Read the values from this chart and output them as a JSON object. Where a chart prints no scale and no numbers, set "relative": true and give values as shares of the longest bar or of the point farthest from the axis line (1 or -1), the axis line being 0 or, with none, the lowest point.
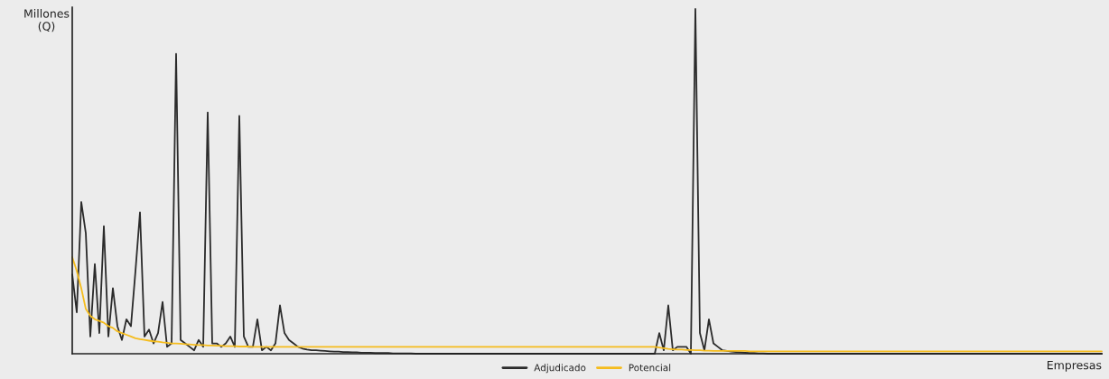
{
  "chart_data": {
    "type": "line",
    "relative": true,
    "xlabel": "Empresas",
    "ylabel": "Millones\n(Q)",
    "legend": "bottom",
    "categories": [
      null,
      null,
      null,
      null,
      null,
      null,
      null,
      null,
      null,
      null,
      null,
      null,
      null,
      null,
      null,
      null,
      null,
      null,
      null,
      null,
      null,
      null,
      null,
      null,
      null,
      null,
      null,
      null,
      null,
      null,
      null,
      null,
      null,
      null,
      null,
      null,
      null,
      null,
      null,
      null,
      null,
      null,
      null,
      null,
      null,
      null,
      null,
      null,
      null,
      null,
      null,
      null,
      null,
      null,
      null,
      null,
      null,
      null,
      null,
      null,
      null,
      null,
      null,
      null,
      null,
      null,
      null,
      null,
      null,
      null,
      null,
      null,
      null,
      null,
      null,
      null,
      null,
      null,
      null,
      null,
      null,
      null,
      null,
      null,
      null,
      null,
      null,
      null,
      null,
      null,
      null,
      null,
      null,
      null,
      null,
      null,
      null,
      null,
      null,
      null,
      null,
      null,
      null,
      null,
      null,
      null,
      null,
      null,
      null,
      null,
      null,
      null,
      null,
      null,
      null,
      null,
      null,
      null,
      null,
      null,
      null,
      null,
      null,
      null,
      null,
      null,
      null,
      null,
      null,
      null,
      null,
      null,
      null,
      null,
      null,
      null,
      null,
      null,
      null,
      null,
      null,
      null,
      null,
      null,
      null,
      null,
      null,
      null,
      null,
      null,
      null,
      null,
      null,
      null,
      null,
      null,
      null,
      null,
      null,
      null,
      null,
      null,
      null,
      null,
      null,
      null,
      null,
      null,
      null,
      null,
      null,
      null,
      null,
      null,
      null,
      null,
      null,
      null,
      null,
      null,
      null,
      null,
      null,
      null,
      null,
      null,
      null,
      null,
      null,
      null,
      null,
      null,
      null,
      null,
      null,
      null,
      null,
      null,
      null,
      null,
      null,
      null,
      null,
      null,
      null,
      null,
      null,
      null,
      null,
      null,
      null,
      null,
      null,
      null,
      null,
      null,
      null,
      null,
      null,
      null,
      null,
      null,
      null,
      null,
      null,
      null,
      null,
      null,
      null
    ],
    "series": [
      {
        "name": "Adjudicado",
        "color": "#2b2b2b",
        "values": [
          0.23,
          0.12,
          0.44,
          0.35,
          0.05,
          0.26,
          0.06,
          0.37,
          0.05,
          0.19,
          0.08,
          0.04,
          0.1,
          0.08,
          0.24,
          0.41,
          0.05,
          0.07,
          0.03,
          0.06,
          0.15,
          0.02,
          0.03,
          0.87,
          0.04,
          0.03,
          0.02,
          0.01,
          0.04,
          0.02,
          0.7,
          0.03,
          0.03,
          0.02,
          0.03,
          0.05,
          0.02,
          0.69,
          0.05,
          0.02,
          0.02,
          0.1,
          0.01,
          0.02,
          0.01,
          0.03,
          0.14,
          0.06,
          0.04,
          0.03,
          0.02,
          0.015,
          0.012,
          0.01,
          0.01,
          0.009,
          0.008,
          0.007,
          0.006,
          0.006,
          0.005,
          0.005,
          0.004,
          0.004,
          0.003,
          0.003,
          0.003,
          0.002,
          0.002,
          0.002,
          0.002,
          0.001,
          0.001,
          0.001,
          0.001,
          0.001,
          0,
          0,
          0,
          0,
          0,
          0,
          0,
          0,
          0,
          0,
          0,
          0,
          0,
          0,
          0,
          0,
          0,
          0,
          0,
          0,
          0,
          0,
          0,
          0,
          0,
          0,
          0,
          0,
          0,
          0,
          0,
          0,
          0,
          0,
          0,
          0,
          0,
          0,
          0,
          0,
          0,
          0,
          0,
          0,
          0,
          0,
          0,
          0,
          0,
          0,
          0,
          0,
          0,
          0,
          0.06,
          0.01,
          0.14,
          0.01,
          0.02,
          0.02,
          0.02,
          0,
          1,
          0.06,
          0.01,
          0.1,
          0.03,
          0.02,
          0.01,
          0.008,
          0.006,
          0.005,
          0.004,
          0.003,
          0.002,
          0.002,
          0.001,
          0.001,
          0,
          0,
          0,
          0,
          0,
          0,
          0,
          0,
          0,
          0,
          0,
          0,
          0,
          0,
          0,
          0,
          0,
          0,
          0,
          0,
          0,
          0,
          0,
          0,
          0,
          0,
          0,
          0,
          0,
          0,
          0,
          0,
          0,
          0,
          0,
          0,
          0,
          0,
          0,
          0,
          0,
          0,
          0,
          0,
          0,
          0,
          0,
          0,
          0,
          0,
          0,
          0,
          0,
          0,
          0,
          0,
          0,
          0,
          0,
          0,
          0,
          0,
          0,
          0,
          0,
          0,
          0,
          0,
          0,
          0,
          0,
          0,
          0,
          0,
          0
        ]
      },
      {
        "name": "Potencial",
        "color": "#f5bc1c",
        "values": [
          0.28,
          0.24,
          0.19,
          0.13,
          0.11,
          0.1,
          0.095,
          0.09,
          0.08,
          0.075,
          0.065,
          0.06,
          0.055,
          0.05,
          0.045,
          0.042,
          0.04,
          0.038,
          0.036,
          0.035,
          0.033,
          0.032,
          0.03,
          0.03,
          0.029,
          0.028,
          0.027,
          0.026,
          0.025,
          0.025,
          0.024,
          0.024,
          0.023,
          0.023,
          0.022,
          0.022,
          0.022,
          0.021,
          0.021,
          0.021,
          0.02,
          0.02,
          0.02,
          0.02,
          0.02,
          0.02,
          0.02,
          0.02,
          0.02,
          0.02,
          0.02,
          0.02,
          0.02,
          0.02,
          0.02,
          0.02,
          0.02,
          0.02,
          0.02,
          0.02,
          0.02,
          0.02,
          0.02,
          0.02,
          0.02,
          0.02,
          0.02,
          0.02,
          0.02,
          0.02,
          0.02,
          0.02,
          0.02,
          0.02,
          0.02,
          0.02,
          0.02,
          0.02,
          0.02,
          0.02,
          0.02,
          0.02,
          0.02,
          0.02,
          0.02,
          0.02,
          0.02,
          0.02,
          0.02,
          0.02,
          0.02,
          0.02,
          0.02,
          0.02,
          0.02,
          0.02,
          0.02,
          0.02,
          0.02,
          0.02,
          0.02,
          0.02,
          0.02,
          0.02,
          0.02,
          0.02,
          0.02,
          0.02,
          0.02,
          0.02,
          0.02,
          0.02,
          0.02,
          0.02,
          0.02,
          0.02,
          0.02,
          0.02,
          0.02,
          0.02,
          0.02,
          0.02,
          0.02,
          0.02,
          0.02,
          0.02,
          0.02,
          0.02,
          0.02,
          0.02,
          0.018,
          0.016,
          0.014,
          0.013,
          0.012,
          0.012,
          0.011,
          0.011,
          0.01,
          0.01,
          0.009,
          0.009,
          0.008,
          0.008,
          0.008,
          0.008,
          0.008,
          0.008,
          0.008,
          0.008,
          0.007,
          0.007,
          0.007,
          0.007,
          0.007,
          0.007,
          0.007,
          0.007,
          0.007,
          0.007,
          0.007,
          0.007,
          0.007,
          0.007,
          0.007,
          0.007,
          0.007,
          0.007,
          0.007,
          0.007,
          0.007,
          0.007,
          0.007,
          0.007,
          0.007,
          0.007,
          0.007,
          0.007,
          0.007,
          0.007,
          0.007,
          0.007,
          0.007,
          0.007,
          0.007,
          0.007,
          0.007,
          0.007,
          0.007,
          0.007,
          0.007,
          0.007,
          0.007,
          0.007,
          0.007,
          0.007,
          0.007,
          0.007,
          0.007,
          0.007,
          0.007,
          0.007,
          0.007,
          0.007,
          0.007,
          0.007,
          0.007,
          0.007,
          0.007,
          0.007,
          0.007,
          0.007,
          0.007,
          0.007,
          0.007,
          0.007,
          0.007,
          0.007,
          0.007,
          0.007,
          0.007,
          0.007,
          0.007,
          0.007,
          0.007,
          0.007,
          0.007,
          0.007,
          0.007
        ]
      }
    ]
  }
}
